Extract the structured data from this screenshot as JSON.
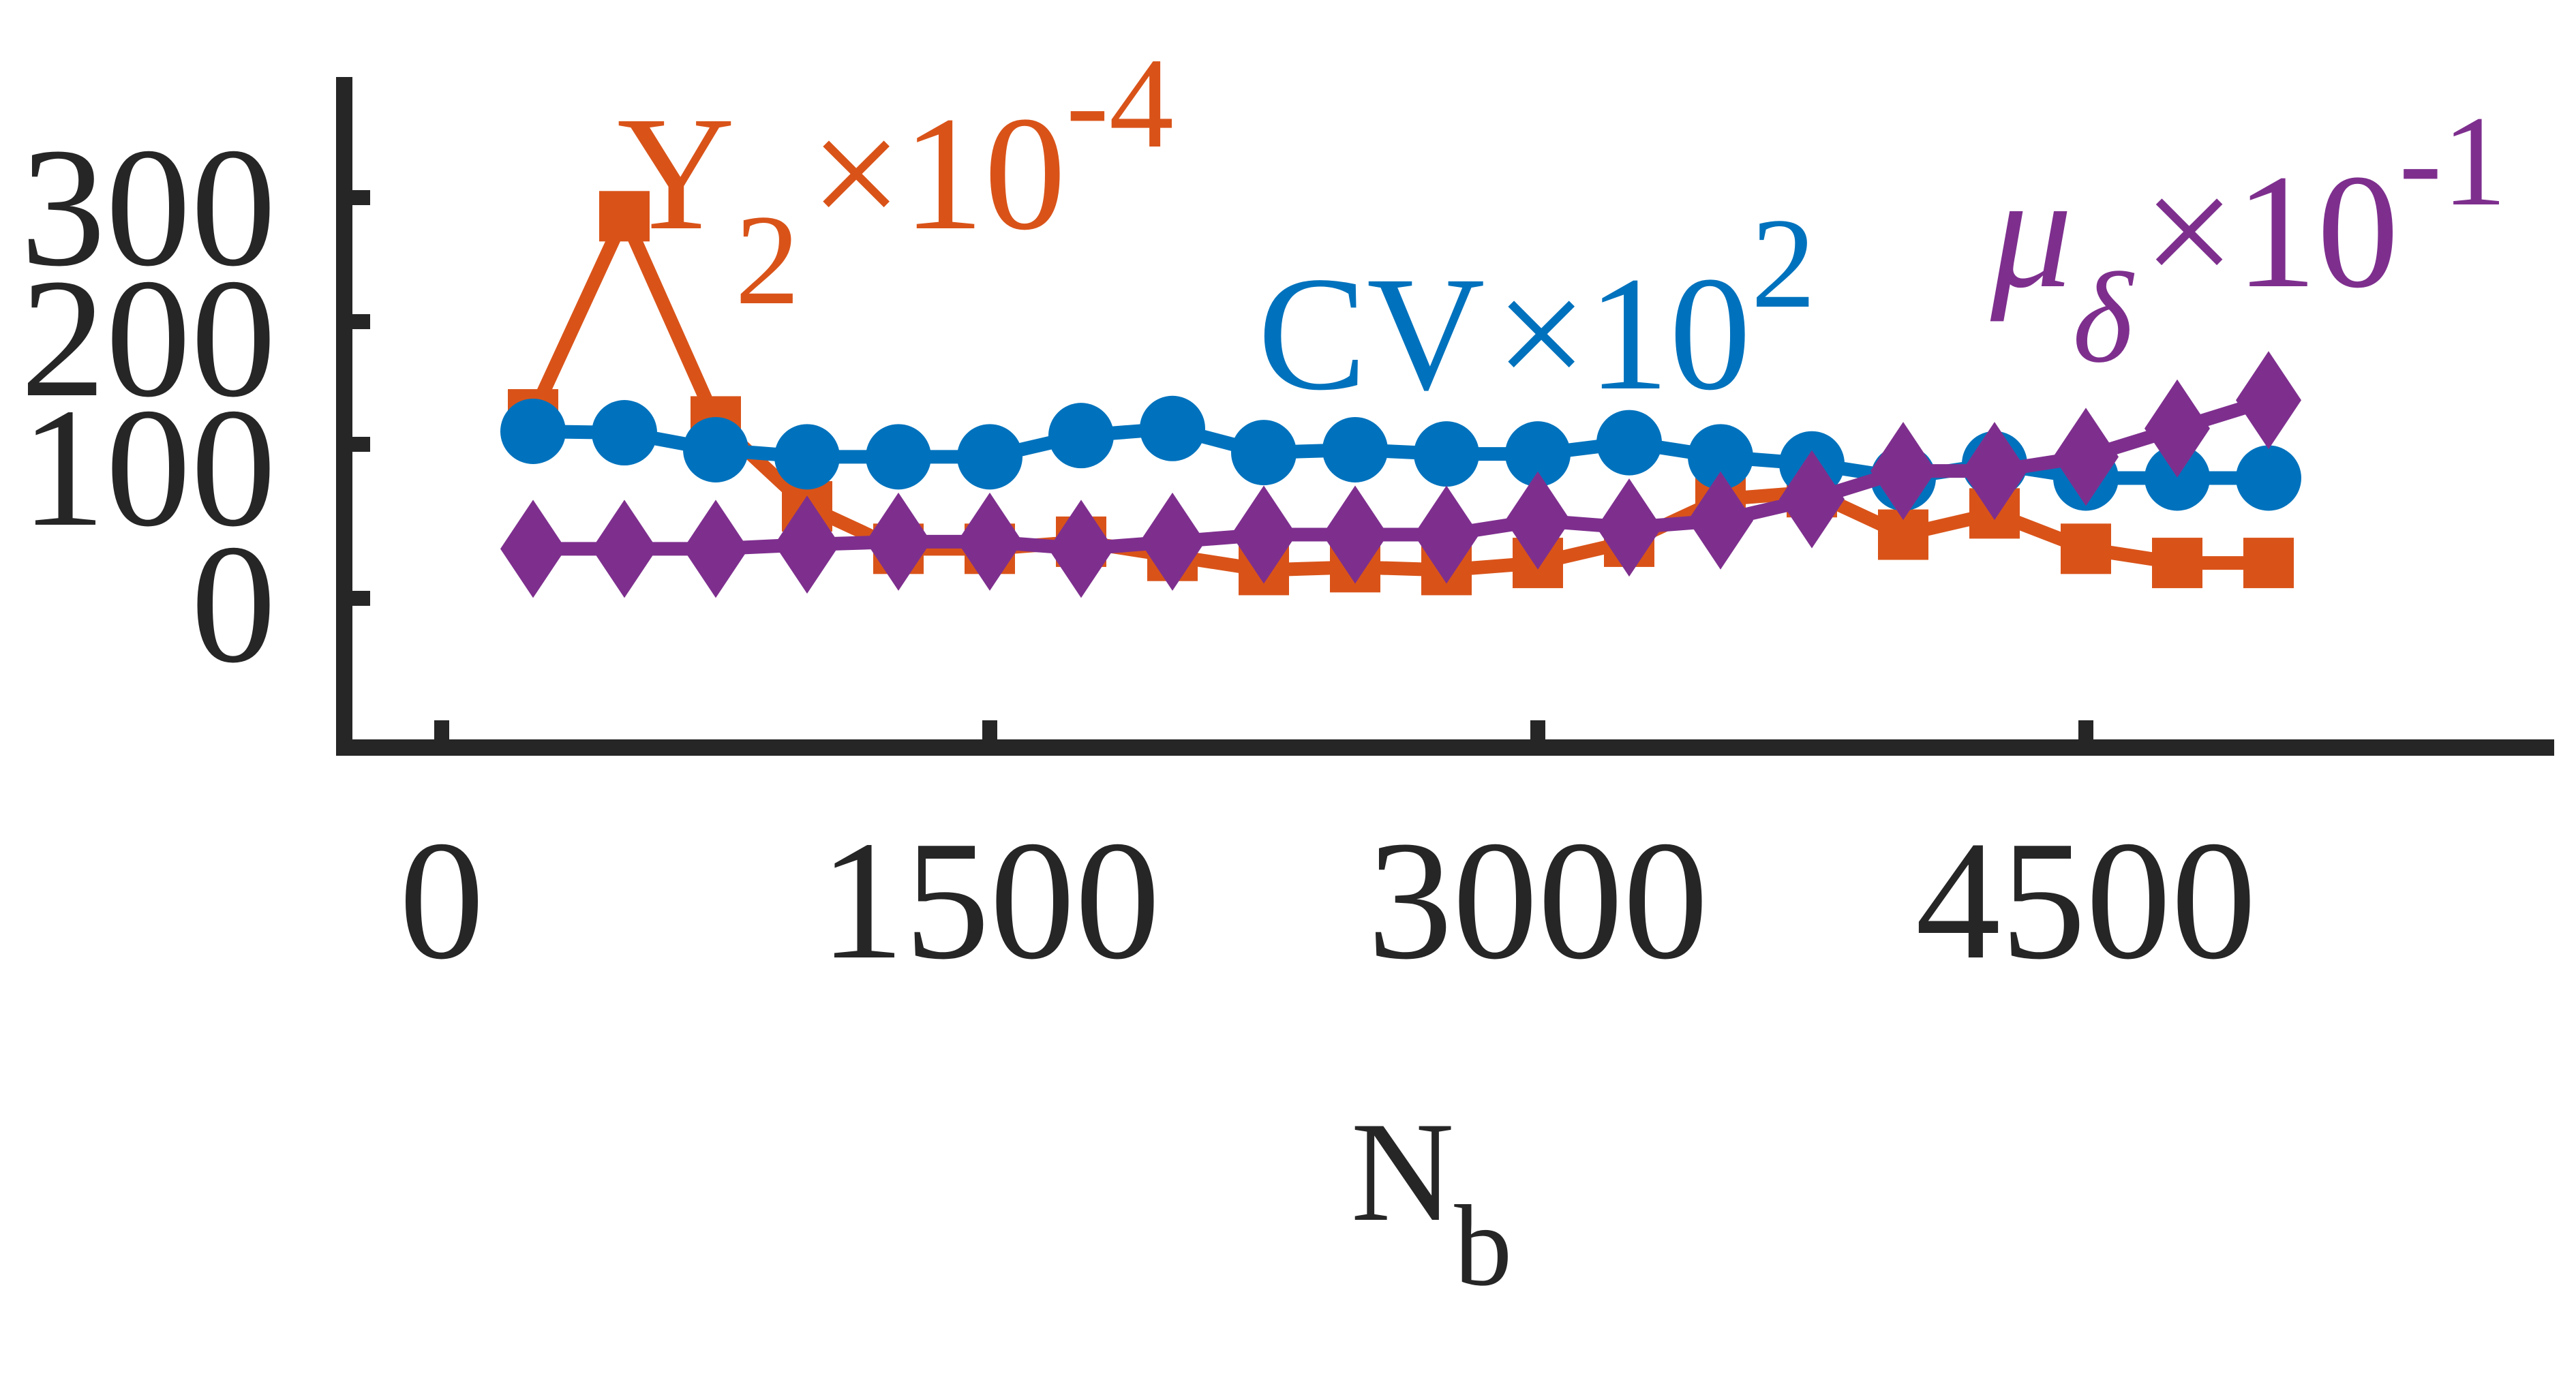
{
  "chart_data": {
    "type": "line",
    "xlabel": "N",
    "xlabel_sub": "b",
    "ylabel": "",
    "xlim": [
      -200,
      7800
    ],
    "ylim": [
      -60,
      300
    ],
    "x_ticks": [
      "0",
      "1500",
      "3000",
      "4500"
    ],
    "x_tick_values": [
      0,
      1500,
      3000,
      4500
    ],
    "y_ticks": [
      "0",
      "100",
      "200",
      "300"
    ],
    "y_tick_values": [
      0,
      100,
      200,
      300
    ],
    "grid": false,
    "legend": "none",
    "x": [
      250,
      500,
      750,
      1000,
      1250,
      1500,
      1750,
      2000,
      2250,
      2500,
      2750,
      3000,
      3250,
      3500,
      3750,
      4000,
      4250,
      4500,
      4750,
      5000
    ],
    "series": [
      {
        "label_main": "Y",
        "label_sub": "2",
        "label_factor": "×10",
        "label_exp": "-4",
        "color": "#D95319",
        "marker": "square",
        "values": [
          130,
          270,
          125,
          65,
          35,
          35,
          40,
          30,
          20,
          22,
          20,
          25,
          40,
          70,
          75,
          45,
          60,
          35,
          25,
          25
        ]
      },
      {
        "label_main": "CV",
        "label_sub": "",
        "label_factor": "×10",
        "label_exp": "2",
        "color": "#0072BD",
        "marker": "circle",
        "values": [
          118,
          117,
          105,
          100,
          100,
          100,
          115,
          120,
          103,
          105,
          102,
          102,
          110,
          100,
          95,
          85,
          95,
          85,
          85,
          85
        ]
      },
      {
        "label_main": "μ",
        "label_sub": "δ",
        "label_factor": "×10",
        "label_exp": "-1",
        "color": "#7E2F8E",
        "marker": "diamond",
        "values": [
          35,
          35,
          35,
          38,
          40,
          40,
          35,
          40,
          45,
          45,
          45,
          55,
          50,
          55,
          70,
          90,
          90,
          100,
          120,
          140
        ]
      }
    ]
  }
}
